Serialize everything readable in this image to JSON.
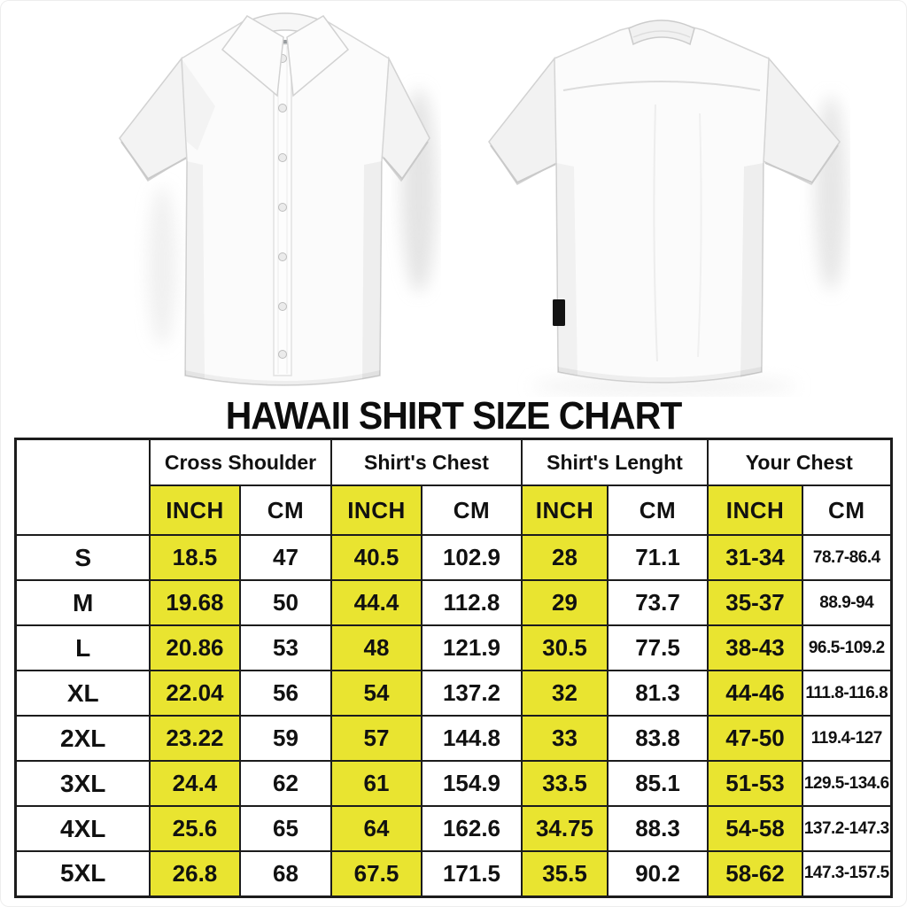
{
  "title": "HAWAII SHIRT SIZE CHART",
  "images": {
    "front_shirt_alt": "White short-sleeve button-up shirt, front view",
    "back_shirt_alt": "White short-sleeve button-up shirt, back view"
  },
  "table": {
    "corner_label": "",
    "groups": [
      {
        "label": "Cross Shoulder"
      },
      {
        "label": "Shirt's Chest"
      },
      {
        "label": "Shirt's Lenght"
      },
      {
        "label": "Your Chest"
      }
    ],
    "unit_headers": [
      "INCH",
      "CM"
    ],
    "rows": [
      {
        "size": "S",
        "cells": [
          "18.5",
          "47",
          "40.5",
          "102.9",
          "28",
          "71.1",
          "31-34",
          "78.7-86.4"
        ]
      },
      {
        "size": "M",
        "cells": [
          "19.68",
          "50",
          "44.4",
          "112.8",
          "29",
          "73.7",
          "35-37",
          "88.9-94"
        ]
      },
      {
        "size": "L",
        "cells": [
          "20.86",
          "53",
          "48",
          "121.9",
          "30.5",
          "77.5",
          "38-43",
          "96.5-109.2"
        ]
      },
      {
        "size": "XL",
        "cells": [
          "22.04",
          "56",
          "54",
          "137.2",
          "32",
          "81.3",
          "44-46",
          "111.8-116.8"
        ]
      },
      {
        "size": "2XL",
        "cells": [
          "23.22",
          "59",
          "57",
          "144.8",
          "33",
          "83.8",
          "47-50",
          "119.4-127"
        ]
      },
      {
        "size": "3XL",
        "cells": [
          "24.4",
          "62",
          "61",
          "154.9",
          "33.5",
          "85.1",
          "51-53",
          "129.5-134.6"
        ]
      },
      {
        "size": "4XL",
        "cells": [
          "25.6",
          "65",
          "64",
          "162.6",
          "34.75",
          "88.3",
          "54-58",
          "137.2-147.3"
        ]
      },
      {
        "size": "5XL",
        "cells": [
          "26.8",
          "68",
          "67.5",
          "171.5",
          "35.5",
          "90.2",
          "58-62",
          "147.3-157.5"
        ]
      }
    ]
  },
  "colors": {
    "highlight_yellow": "#e9e430",
    "border_black": "#1c1c1c",
    "text_black": "#111111"
  }
}
